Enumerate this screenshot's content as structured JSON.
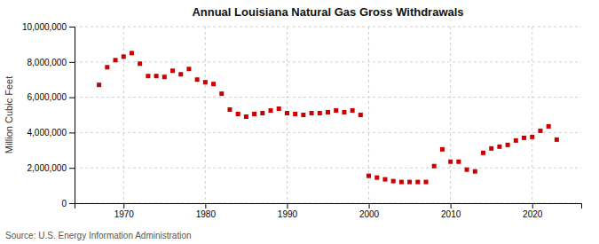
{
  "chart_data": {
    "type": "scatter",
    "title": "Annual Louisiana Natural Gas Gross Withdrawals",
    "ylabel": "Million Cubic Feet",
    "annotation": "Source: U.S. Energy Information Administration",
    "color": "#cc0000",
    "marker": "square",
    "grid": true,
    "xlim": [
      1964,
      2026
    ],
    "xticks": [
      1970,
      1980,
      1990,
      2000,
      2010,
      2020
    ],
    "ylim": [
      0,
      10000000
    ],
    "yticks": [
      0,
      {
        "value": 2000000,
        "label": "2,000,000"
      },
      {
        "value": 4000000,
        "label": "4,000,000"
      },
      {
        "value": 6000000,
        "label": "6,000,000"
      },
      {
        "value": 8000000,
        "label": "8,000,000"
      },
      {
        "value": 10000000,
        "label": "10,000,000"
      }
    ],
    "x": [
      1967,
      1968,
      1969,
      1970,
      1971,
      1972,
      1973,
      1974,
      1975,
      1976,
      1977,
      1978,
      1979,
      1980,
      1981,
      1982,
      1983,
      1984,
      1985,
      1986,
      1987,
      1988,
      1989,
      1990,
      1991,
      1992,
      1993,
      1994,
      1995,
      1996,
      1997,
      1998,
      1999,
      2000,
      2001,
      2002,
      2003,
      2004,
      2005,
      2006,
      2007,
      2008,
      2009,
      2010,
      2011,
      2012,
      2013,
      2014,
      2015,
      2016,
      2017,
      2018,
      2019,
      2020,
      2021,
      2022,
      2023
    ],
    "values": [
      6700000,
      7700000,
      8100000,
      8300000,
      8500000,
      7900000,
      7200000,
      7200000,
      7150000,
      7500000,
      7300000,
      7600000,
      7000000,
      6850000,
      6750000,
      6200000,
      5300000,
      5050000,
      4900000,
      5050000,
      5100000,
      5250000,
      5350000,
      5100000,
      5050000,
      5000000,
      5100000,
      5100000,
      5150000,
      5250000,
      5150000,
      5250000,
      5000000,
      1550000,
      1450000,
      1350000,
      1250000,
      1200000,
      1200000,
      1200000,
      1200000,
      2100000,
      3050000,
      2350000,
      2350000,
      1900000,
      1800000,
      2850000,
      3100000,
      3200000,
      3300000,
      3550000,
      3700000,
      3750000,
      4100000,
      4350000,
      3600000
    ]
  }
}
